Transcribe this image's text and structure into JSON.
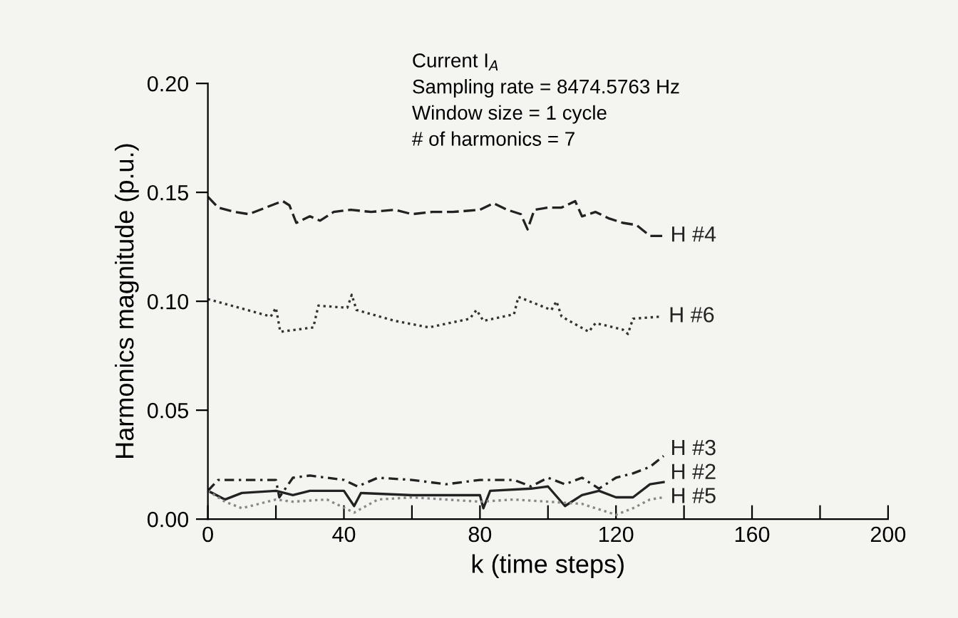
{
  "chart_data": {
    "type": "line",
    "xlabel": "k (time steps)",
    "ylabel": "Harmonics magnitude (p.u.)",
    "annotations": [
      "Current I$_{A}$",
      "Sampling rate = 8474.5763 Hz",
      "Window size = 1 cycle",
      "# of harmonics = 7"
    ],
    "xlim": [
      0,
      200
    ],
    "ylim": [
      0,
      0.2
    ],
    "xticks": [
      0,
      {
        "value": 20,
        "label": null
      },
      40,
      {
        "value": 60,
        "label": null
      },
      80,
      {
        "value": 100,
        "label": null
      },
      120,
      {
        "value": 140,
        "label": null
      },
      160,
      {
        "value": 180,
        "label": null
      },
      200
    ],
    "yticks": [
      {
        "value": 0,
        "label": "0.00"
      },
      {
        "value": 0.05,
        "label": "0.05"
      },
      {
        "value": 0.1,
        "label": "0.10"
      },
      {
        "value": 0.15,
        "label": "0.15"
      },
      {
        "value": 0.2,
        "label": "0.20"
      }
    ],
    "grid": false,
    "legend": false,
    "marker": "none",
    "series": [
      {
        "name": "H #4",
        "color": "#222222",
        "line_style": "dashed",
        "x": [
          0,
          3,
          8,
          12,
          17,
          22,
          24,
          26,
          30,
          33,
          37,
          42,
          48,
          55,
          60,
          66,
          72,
          80,
          84,
          88,
          92,
          94,
          96,
          100,
          104,
          108,
          110,
          114,
          118,
          122,
          126,
          130,
          134
        ],
        "values": [
          0.148,
          0.143,
          0.141,
          0.14,
          0.143,
          0.146,
          0.144,
          0.136,
          0.139,
          0.137,
          0.141,
          0.142,
          0.141,
          0.142,
          0.14,
          0.141,
          0.141,
          0.142,
          0.145,
          0.142,
          0.14,
          0.133,
          0.142,
          0.143,
          0.143,
          0.146,
          0.139,
          0.141,
          0.138,
          0.136,
          0.135,
          0.13,
          0.13
        ]
      },
      {
        "name": "H #6",
        "color": "#333333",
        "line_style": "dotted",
        "x": [
          0,
          18.5,
          20,
          21.3,
          31,
          32.5,
          41,
          42.3,
          43.7,
          55,
          65,
          77,
          79,
          81,
          90,
          91.3,
          101,
          102.5,
          104,
          112,
          114,
          122,
          123.5,
          125,
          133.5
        ],
        "values": [
          0.101,
          0.093,
          0.097,
          0.086,
          0.088,
          0.098,
          0.097,
          0.103,
          0.096,
          0.091,
          0.088,
          0.092,
          0.096,
          0.091,
          0.094,
          0.102,
          0.096,
          0.1,
          0.093,
          0.086,
          0.09,
          0.087,
          0.085,
          0.092,
          0.093
        ]
      },
      {
        "name": "H #3",
        "color": "#222222",
        "line_style": "dashdot",
        "x": [
          0,
          3,
          20,
          21,
          25,
          30,
          40,
          44,
          50,
          60,
          70,
          80,
          90,
          95,
          100,
          105,
          110,
          115,
          120,
          125,
          130,
          134
        ],
        "values": [
          0.013,
          0.018,
          0.018,
          0.01,
          0.019,
          0.02,
          0.018,
          0.015,
          0.019,
          0.018,
          0.016,
          0.018,
          0.018,
          0.015,
          0.019,
          0.016,
          0.019,
          0.014,
          0.019,
          0.021,
          0.024,
          0.029
        ]
      },
      {
        "name": "H #2",
        "color": "#222222",
        "line_style": "solid",
        "x": [
          0,
          5,
          10,
          20,
          25,
          30,
          40,
          43,
          45,
          60,
          80,
          81,
          83,
          95,
          100,
          105,
          110,
          115,
          120,
          125,
          130,
          134
        ],
        "values": [
          0.013,
          0.009,
          0.012,
          0.013,
          0.011,
          0.013,
          0.013,
          0.006,
          0.012,
          0.011,
          0.011,
          0.005,
          0.013,
          0.014,
          0.015,
          0.006,
          0.011,
          0.013,
          0.01,
          0.01,
          0.016,
          0.017
        ]
      },
      {
        "name": "H #5",
        "color": "#888888",
        "line_style": "dotted",
        "x": [
          0,
          5,
          10,
          15,
          20,
          25,
          35,
          43,
          50,
          60,
          70,
          80,
          90,
          100,
          110,
          120,
          125,
          130,
          134
        ],
        "values": [
          0.013,
          0.008,
          0.005,
          0.007,
          0.009,
          0.008,
          0.009,
          0.003,
          0.009,
          0.01,
          0.009,
          0.008,
          0.009,
          0.008,
          0.007,
          0.002,
          0.005,
          0.009,
          0.01
        ]
      }
    ]
  }
}
